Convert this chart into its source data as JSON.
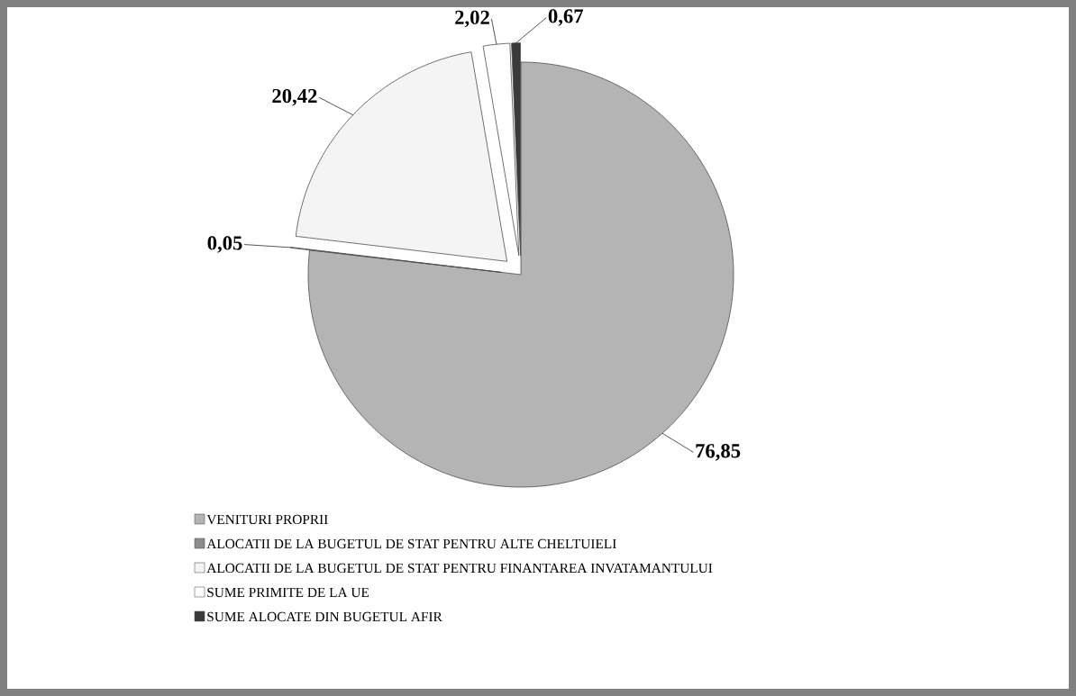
{
  "chart_data": {
    "type": "pie",
    "categories": [
      "VENITURI PROPRII",
      "ALOCATII DE LA BUGETUL DE STAT PENTRU ALTE CHELTUIELI",
      "ALOCATII DE LA BUGETUL DE STAT PENTRU FINANTAREA INVATAMANTULUI",
      "SUME PRIMITE DE LA UE",
      "SUME ALOCATE DIN BUGETUL AFIR"
    ],
    "values": [
      76.85,
      0.05,
      20.42,
      2.02,
      0.67
    ],
    "value_labels": [
      "76,85",
      "0,05",
      "20,42",
      "2,02",
      "0,67"
    ],
    "colors": [
      "#b4b4b4",
      "#8c8c8c",
      "#f4f4f4",
      "#ffffff",
      "#3a3a3a"
    ],
    "legend": "bottom"
  }
}
